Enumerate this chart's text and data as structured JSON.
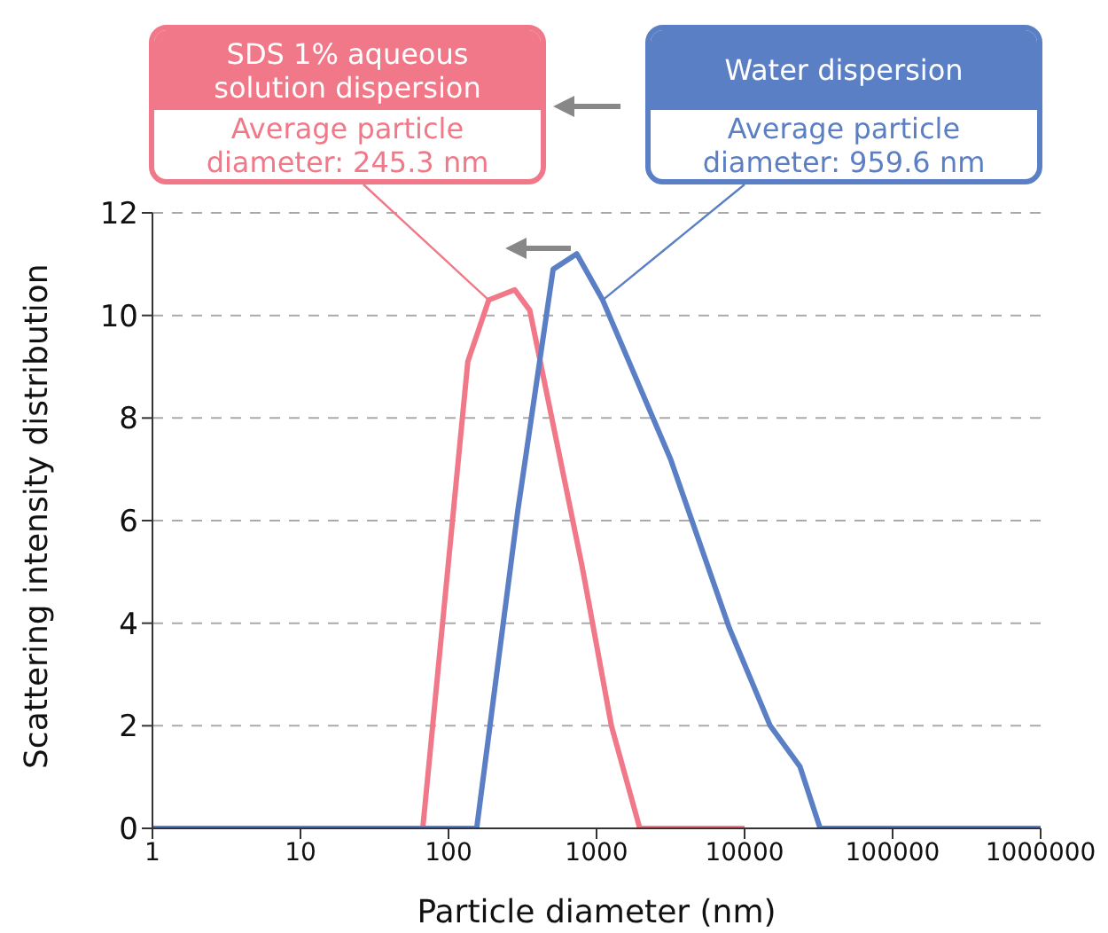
{
  "chart_data": {
    "type": "line",
    "xlabel": "Particle diameter (nm)",
    "ylabel": "Scattering intensity distribution",
    "log": "x",
    "xlim": [
      1,
      1000000
    ],
    "xticks": [
      1,
      10,
      100,
      1000,
      10000,
      100000,
      1000000
    ],
    "ylim": [
      0,
      12
    ],
    "yticks": [
      0,
      2,
      4,
      6,
      8,
      10,
      12
    ],
    "grid": "y",
    "legend": "top",
    "marker": "none",
    "line_style": "solid",
    "series": [
      {
        "name": "SDS 1% aqueous solution dispersion",
        "color": "#f07888",
        "x": [
          67,
          108,
          135,
          187,
          280,
          354,
          800,
          1260,
          1960,
          10000
        ],
        "values": [
          0,
          6.2,
          9.1,
          10.3,
          10.5,
          10.1,
          5.1,
          2,
          0,
          0
        ]
      },
      {
        "name": "Water dispersion",
        "color": "#5b7fc4",
        "x": [
          1,
          155,
          294,
          509,
          735,
          1100,
          3160,
          7900,
          14900,
          23700,
          32400,
          1000000
        ],
        "values": [
          0,
          0,
          6.2,
          10.9,
          11.2,
          10.3,
          7.2,
          3.9,
          2,
          1.2,
          0,
          0
        ]
      }
    ],
    "annotations": [
      {
        "text": "Average particle diameter: 245.3 nm",
        "x": 187,
        "y": 10.3
      },
      {
        "text": "Average particle diameter: 959.6 nm",
        "x": 1100,
        "y": 10.3
      }
    ]
  }
}
